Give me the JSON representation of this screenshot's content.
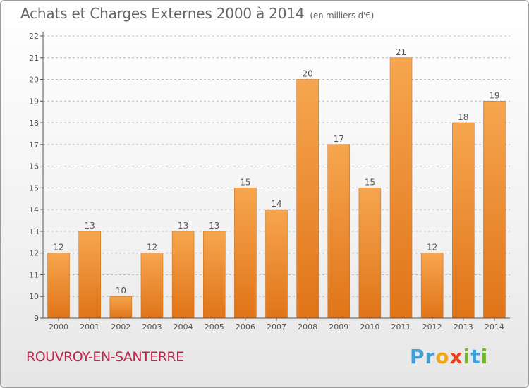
{
  "header": {
    "title": "Achats et Charges Externes 2000 à 2014",
    "unit": "(en milliers d'€)"
  },
  "footer": {
    "town": "ROUVROY-EN-SANTERRE"
  },
  "brand": {
    "letters": [
      "P",
      "r",
      "o",
      "x",
      "i",
      "t",
      "i"
    ],
    "colors": [
      "#3fa0d8",
      "#3fa0d8",
      "#f0a818",
      "#e8431f",
      "#73b52b",
      "#3fa0d8",
      "#73b52b"
    ]
  },
  "colors": {
    "bar_light": "#f6a650",
    "bar_dark": "#e07418",
    "axis": "#555555",
    "grid": "#bbbbbb"
  },
  "chart_data": {
    "type": "bar",
    "categories": [
      "2000",
      "2001",
      "2002",
      "2003",
      "2004",
      "2005",
      "2006",
      "2007",
      "2008",
      "2009",
      "2010",
      "2011",
      "2012",
      "2013",
      "2014"
    ],
    "values": [
      12,
      13,
      10,
      12,
      13,
      13,
      15,
      14,
      20,
      17,
      15,
      21,
      12,
      18,
      19
    ],
    "title": "Achats et Charges Externes 2000 à 2014",
    "xlabel": "",
    "ylabel": "",
    "ylim": [
      9,
      22
    ],
    "yticks": [
      9,
      10,
      11,
      12,
      13,
      14,
      15,
      16,
      17,
      18,
      19,
      20,
      21,
      22
    ],
    "grid": true,
    "data_labels": true
  }
}
